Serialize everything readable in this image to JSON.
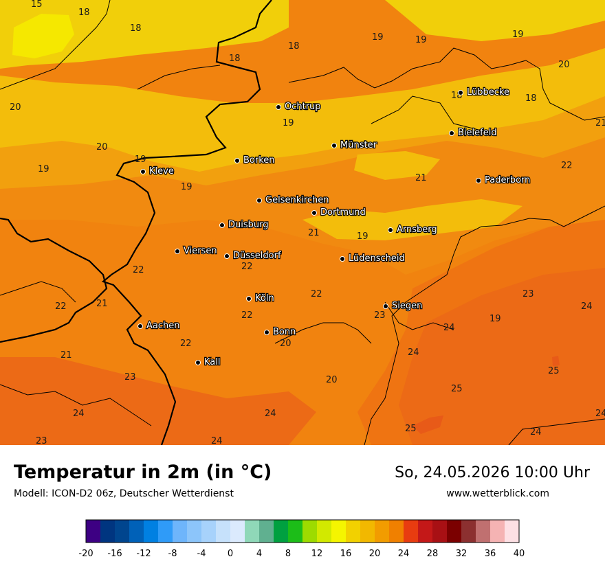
{
  "title": "Temperatur in 2m (in °C)",
  "subtitle": "Modell: ICON-D2 06z, Deutscher Wetterdienst",
  "datetime": "So, 24.05.2026 10:00 Uhr",
  "website": "www.wetterblick.com",
  "colors": {
    "t16": "#f5e800",
    "t18": "#f1cf0a",
    "t19": "#f3bd0b",
    "t20": "#f2a00e",
    "t21": "#f18a10",
    "t22": "#f1830f",
    "t23": "#ef7412",
    "t24": "#ec6a16",
    "t25": "#e85a18"
  },
  "cities": [
    {
      "name": "Ochtrup"
    },
    {
      "name": "Lübbecke"
    },
    {
      "name": "Bielefeld"
    },
    {
      "name": "Münster"
    },
    {
      "name": "Borken"
    },
    {
      "name": "Kleve"
    },
    {
      "name": "Paderborn"
    },
    {
      "name": "Gelsenkirchen"
    },
    {
      "name": "Dortmund"
    },
    {
      "name": "Duisburg"
    },
    {
      "name": "Arnsberg"
    },
    {
      "name": "Viersen"
    },
    {
      "name": "Düsseldorf"
    },
    {
      "name": "Lüdenscheid"
    },
    {
      "name": "Köln"
    },
    {
      "name": "Siegen"
    },
    {
      "name": "Aachen"
    },
    {
      "name": "Bonn"
    },
    {
      "name": "Kall"
    }
  ],
  "values": [
    "15",
    "18",
    "18",
    "18",
    "18",
    "19",
    "19",
    "19",
    "20",
    "20",
    "18",
    "18",
    "21",
    "19",
    "20",
    "19",
    "19",
    "19",
    "21",
    "22",
    "19",
    "21",
    "19",
    "22",
    "22",
    "21",
    "22",
    "22",
    "22",
    "23",
    "24",
    "19",
    "24",
    "21",
    "23",
    "22",
    "20",
    "24",
    "25",
    "23",
    "20",
    "25",
    "24",
    "24",
    "24",
    "21",
    "23",
    "24",
    "25",
    "24"
  ],
  "legend": {
    "colors": [
      "#3d0083",
      "#003580",
      "#00458e",
      "#0061b8",
      "#0080e2",
      "#2f9bf8",
      "#6eb5fb",
      "#8cc5fa",
      "#a7d2fb",
      "#c6e1fb",
      "#dbeafd",
      "#8fd8b8",
      "#60b090",
      "#00a040",
      "#1cbd18",
      "#9ddb00",
      "#d2e900",
      "#f5f500",
      "#f2d100",
      "#f2b800",
      "#f29c00",
      "#f08000",
      "#e83c10",
      "#c41818",
      "#a81014",
      "#7b0000",
      "#8c3030",
      "#c07070",
      "#f5b3b3",
      "#fde0e4"
    ],
    "tick_labels": [
      "-20",
      "-16",
      "-12",
      "-8",
      "-4",
      "0",
      "4",
      "8",
      "12",
      "16",
      "20",
      "24",
      "28",
      "32",
      "36",
      "40"
    ]
  }
}
